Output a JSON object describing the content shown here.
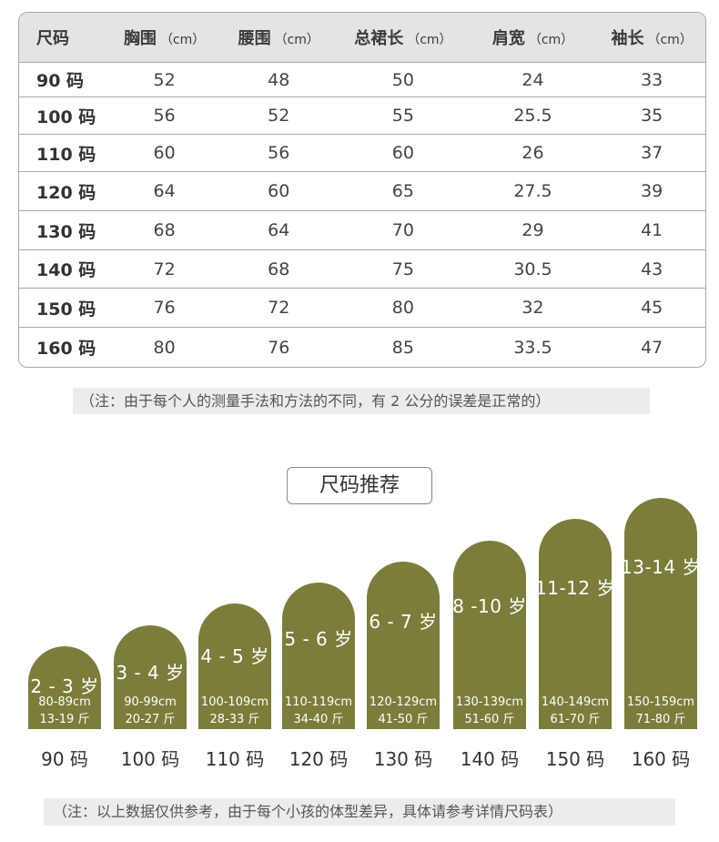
{
  "table": {
    "headers": [
      {
        "label": "尺码",
        "unit": ""
      },
      {
        "label": "胸围",
        "unit": "（cm）"
      },
      {
        "label": "腰围",
        "unit": "（cm）"
      },
      {
        "label": "总裙长",
        "unit": "（cm）"
      },
      {
        "label": "肩宽",
        "unit": "（cm）"
      },
      {
        "label": "袖长",
        "unit": "（cm）"
      }
    ],
    "rows": [
      [
        "90 码",
        "52",
        "48",
        "50",
        "24",
        "33"
      ],
      [
        "100 码",
        "56",
        "52",
        "55",
        "25.5",
        "35"
      ],
      [
        "110 码",
        "60",
        "56",
        "60",
        "26",
        "37"
      ],
      [
        "120 码",
        "64",
        "60",
        "65",
        "27.5",
        "39"
      ],
      [
        "130 码",
        "68",
        "64",
        "70",
        "29",
        "41"
      ],
      [
        "140 码",
        "72",
        "68",
        "75",
        "30.5",
        "43"
      ],
      [
        "150 码",
        "76",
        "72",
        "80",
        "32",
        "45"
      ],
      [
        "160 码",
        "80",
        "76",
        "85",
        "33.5",
        "47"
      ]
    ]
  },
  "note_top": "（注：由于每个人的测量手法和方法的不同，有 2 公分的误差是正常的）",
  "recommend": {
    "title": "尺码推荐",
    "items": [
      {
        "age": "2 - 3 岁",
        "height": "80-89cm",
        "weight": "13-19 斤",
        "size": "90 码"
      },
      {
        "age": "3 - 4 岁",
        "height": "90-99cm",
        "weight": "20-27 斤",
        "size": "100 码"
      },
      {
        "age": "4 - 5 岁",
        "height": "100-109cm",
        "weight": "28-33 斤",
        "size": "110 码"
      },
      {
        "age": "5 - 6 岁",
        "height": "110-119cm",
        "weight": "34-40 斤",
        "size": "120 码"
      },
      {
        "age": "6 - 7 岁",
        "height": "120-129cm",
        "weight": "41-50 斤",
        "size": "130 码"
      },
      {
        "age": "8 -10 岁",
        "height": "130-139cm",
        "weight": "51-60 斤",
        "size": "140 码"
      },
      {
        "age": "11-12 岁",
        "height": "140-149cm",
        "weight": "61-70 斤",
        "size": "150 码"
      },
      {
        "age": "13-14 岁",
        "height": "150-159cm",
        "weight": "71-80 斤",
        "size": "160 码"
      }
    ],
    "bar_color": "#7b7d3a"
  },
  "note_bottom": "（注：以上数据仅供参考，由于每个小孩的体型差异，具体请参考详情尺码表）"
}
